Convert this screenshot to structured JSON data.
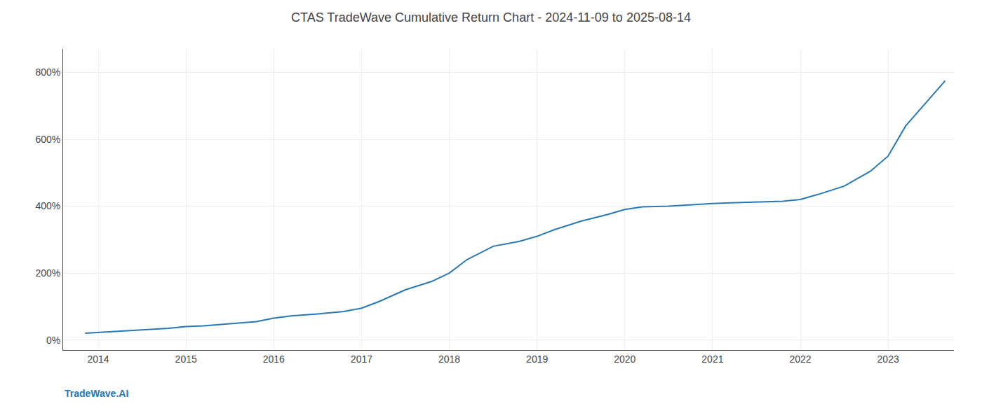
{
  "chart_data": {
    "type": "line",
    "title": "CTAS TradeWave Cumulative Return Chart - 2024-11-09 to 2025-08-14",
    "annotations": [
      "TradeWave.AI"
    ],
    "x": [
      2013.85,
      2014.0,
      2014.2,
      2014.5,
      2014.8,
      2015.0,
      2015.2,
      2015.5,
      2015.8,
      2016.0,
      2016.2,
      2016.5,
      2016.8,
      2017.0,
      2017.2,
      2017.5,
      2017.8,
      2018.0,
      2018.2,
      2018.5,
      2018.8,
      2019.0,
      2019.2,
      2019.5,
      2019.8,
      2020.0,
      2020.2,
      2020.5,
      2020.8,
      2021.0,
      2021.2,
      2021.5,
      2021.8,
      2022.0,
      2022.2,
      2022.5,
      2022.8,
      2023.0,
      2023.2,
      2023.5,
      2023.65
    ],
    "values": [
      20,
      22,
      25,
      30,
      35,
      40,
      42,
      48,
      55,
      65,
      72,
      78,
      85,
      95,
      115,
      150,
      175,
      200,
      240,
      280,
      295,
      310,
      330,
      355,
      375,
      390,
      398,
      400,
      405,
      408,
      410,
      412,
      415,
      420,
      435,
      460,
      505,
      550,
      640,
      730,
      775
    ],
    "color": "#2878b5",
    "xlim": [
      2013.6,
      2023.75
    ],
    "xticks": [
      2014,
      2015,
      2016,
      2017,
      2018,
      2019,
      2020,
      2021,
      2022,
      2023
    ],
    "ylim": [
      -30,
      870
    ],
    "yticks": [
      {
        "value": 0,
        "label": "0%"
      },
      {
        "value": 200,
        "label": "200%"
      },
      {
        "value": 400,
        "label": "400%"
      },
      {
        "value": 600,
        "label": "600%"
      },
      {
        "value": 800,
        "label": "800%"
      }
    ],
    "grid": true
  }
}
